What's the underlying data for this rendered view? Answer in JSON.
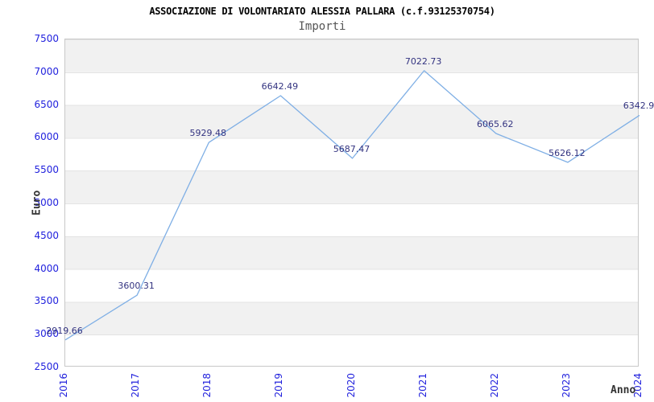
{
  "header": {
    "title": "ASSOCIAZIONE DI VOLONTARIATO ALESSIA PALLARA (c.f.93125370754)",
    "subtitle": "Importi"
  },
  "chart_data": {
    "type": "line",
    "title": "ASSOCIAZIONE DI VOLONTARIATO ALESSIA PALLARA (c.f.93125370754)",
    "subtitle": "Importi",
    "xlabel": "Anno",
    "ylabel": "Euro",
    "categories": [
      "2016",
      "2017",
      "2018",
      "2019",
      "2020",
      "2021",
      "2022",
      "2023",
      "2024"
    ],
    "values": [
      2919.66,
      3600.31,
      5929.48,
      6642.49,
      5687.47,
      7022.73,
      6065.62,
      5626.12,
      6342.9
    ],
    "point_labels": [
      "2919.66",
      "3600.31",
      "5929.48",
      "6642.49",
      "5687.47",
      "7022.73",
      "6065.62",
      "5626.12",
      "6342.9"
    ],
    "ylim": [
      2500,
      7500
    ],
    "ytick_step": 500,
    "yticks": [
      7500,
      7000,
      6500,
      6000,
      5500,
      5000,
      4500,
      4000,
      3500,
      3000,
      2500
    ],
    "grid": "alternating horizontal bands, no vertical gridlines",
    "legend_position": "none",
    "colors": {
      "line": "#7fafe5",
      "tick_labels": "#2222dd",
      "point_labels": "#333380",
      "band_gray": "#f1f1f1",
      "band_white": "#ffffff",
      "band_edge": "#e3e3e3",
      "plot_border": "#c8c8c8",
      "title": "#000000",
      "subtitle": "#555555",
      "axis_titles": "#333333"
    }
  }
}
